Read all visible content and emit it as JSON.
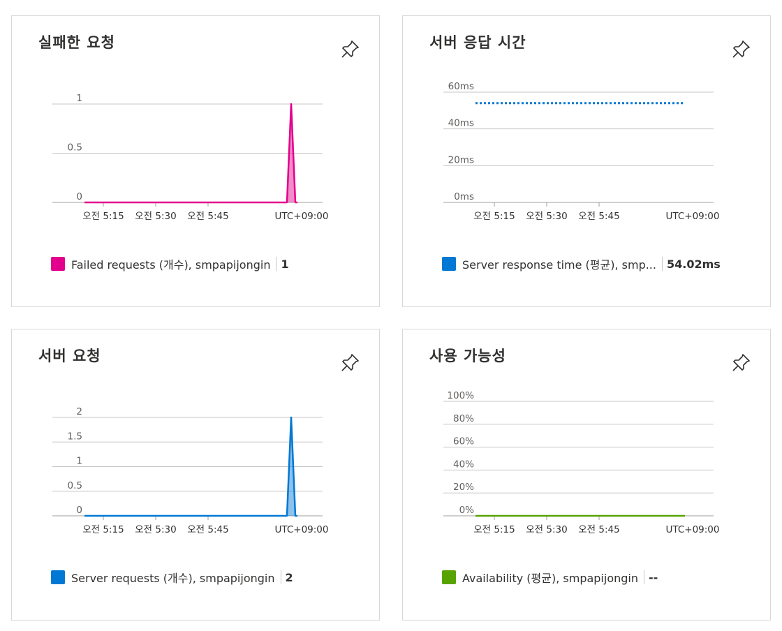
{
  "colors": {
    "failed": "#e3008c",
    "requests": "#0078d4",
    "response": "#0078d4",
    "availability": "#57a300",
    "grid": "#c8c6c4",
    "axis_text": "#605e5c"
  },
  "tiles": {
    "failed": {
      "title": "실패한 요청",
      "legend_label": "Failed requests (개수), smpapijongin",
      "legend_value": "1"
    },
    "response": {
      "title": "서버 응답 시간",
      "legend_label": "Server response time (평균), smp...",
      "legend_value": "54.02ms"
    },
    "requests": {
      "title": "서버 요청",
      "legend_label": "Server requests (개수), smpapijongin",
      "legend_value": "2"
    },
    "availability": {
      "title": "사용 가능성",
      "legend_label": "Availability (평균), smpapijongin",
      "legend_value": "--"
    }
  },
  "chart_data": [
    {
      "id": "failed",
      "type": "area",
      "title": "실패한 요청",
      "x_tick_labels": [
        "오전 5:15",
        "오전 5:30",
        "오전 5:45"
      ],
      "timezone_label": "UTC+09:00",
      "y_ticks": [
        0,
        0.5,
        1
      ],
      "y_tick_labels": [
        "0",
        "0.5",
        "1"
      ],
      "ylim": [
        0,
        1
      ],
      "series": [
        {
          "name": "Failed requests (개수), smpapijongin",
          "values": [
            0,
            0,
            0,
            0,
            0,
            0,
            0,
            0,
            0,
            0,
            0,
            0,
            0,
            0,
            0,
            0,
            0,
            0,
            0,
            0,
            0,
            0,
            0,
            0,
            0,
            0,
            0,
            0,
            0,
            0,
            0,
            0,
            0,
            0,
            0,
            0,
            0,
            0,
            0,
            0,
            0,
            0,
            0,
            0,
            0,
            0,
            0,
            0,
            0,
            0,
            1,
            0
          ],
          "color_key": "failed"
        }
      ]
    },
    {
      "id": "response",
      "type": "line",
      "title": "서버 응답 시간",
      "x_tick_labels": [
        "오전 5:15",
        "오전 5:30",
        "오전 5:45"
      ],
      "timezone_label": "UTC+09:00",
      "y_ticks": [
        0,
        20,
        40,
        60
      ],
      "y_tick_labels": [
        "0ms",
        "20ms",
        "40ms",
        "60ms"
      ],
      "ylim": [
        0,
        60
      ],
      "series": [
        {
          "name": "Server response time (평균), smp...",
          "values": [
            54.02,
            54.02
          ],
          "style": "dotted",
          "color_key": "response"
        }
      ]
    },
    {
      "id": "requests",
      "type": "area",
      "title": "서버 요청",
      "x_tick_labels": [
        "오전 5:15",
        "오전 5:30",
        "오전 5:45"
      ],
      "timezone_label": "UTC+09:00",
      "y_ticks": [
        0,
        0.5,
        1,
        1.5,
        2
      ],
      "y_tick_labels": [
        "0",
        "0.5",
        "1",
        "1.5",
        "2"
      ],
      "ylim": [
        0,
        2
      ],
      "series": [
        {
          "name": "Server requests (개수), smpapijongin",
          "values": [
            0,
            0,
            0,
            0,
            0,
            0,
            0,
            0,
            0,
            0,
            0,
            0,
            0,
            0,
            0,
            0,
            0,
            0,
            0,
            0,
            0,
            0,
            0,
            0,
            0,
            0,
            0,
            0,
            0,
            0,
            0,
            0,
            0,
            0,
            0,
            0,
            0,
            0,
            0,
            0,
            0,
            0,
            0,
            0,
            0,
            0,
            0,
            0,
            0,
            0,
            2,
            0
          ],
          "color_key": "requests"
        }
      ]
    },
    {
      "id": "availability",
      "type": "line",
      "title": "사용 가능성",
      "x_tick_labels": [
        "오전 5:15",
        "오전 5:30",
        "오전 5:45"
      ],
      "timezone_label": "UTC+09:00",
      "y_ticks": [
        0,
        20,
        40,
        60,
        80,
        100
      ],
      "y_tick_labels": [
        "0%",
        "20%",
        "40%",
        "60%",
        "80%",
        "100%"
      ],
      "ylim": [
        0,
        100
      ],
      "series": [
        {
          "name": "Availability (평균), smpapijongin",
          "values": [
            0,
            0
          ],
          "style": "solid",
          "color_key": "availability"
        }
      ]
    }
  ]
}
